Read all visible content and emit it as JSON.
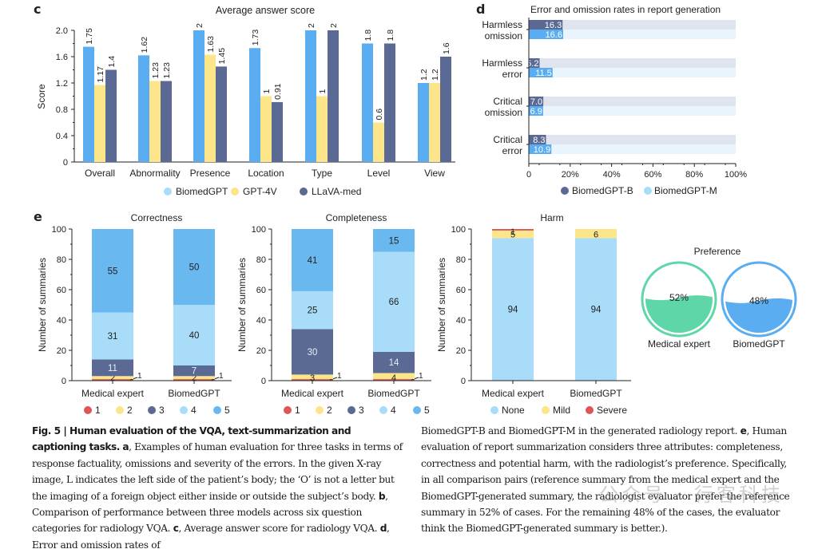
{
  "panel_labels": {
    "c": "c",
    "d": "d",
    "e": "e"
  },
  "colors": {
    "biomedgpt": "#5aadf0",
    "gpt4v": "#fde58a",
    "llava": "#5a6a94",
    "bgpt_b": "#5a6a94",
    "bgpt_m": "#5aadf0",
    "score1": "#e05555",
    "score2": "#fde58a",
    "score3": "#5a6a94",
    "score4": "#a8dcf8",
    "score5": "#6ab8f0",
    "none": "#a8dcf8",
    "mild": "#fde58a",
    "severe": "#e05555",
    "pref_expert": "#5fd6a8",
    "pref_gpt": "#5aadf0"
  },
  "chart_data": [
    {
      "id": "c",
      "type": "bar",
      "title": "Average answer score",
      "xlabel": "",
      "ylabel": "Score",
      "ylim": [
        0,
        2.0
      ],
      "yticks": [
        "0",
        "0.4",
        "0.8",
        "1.2",
        "1.6",
        "2.0"
      ],
      "categories": [
        "Overall",
        "Abnormality",
        "Presence",
        "Location",
        "Type",
        "Level",
        "View"
      ],
      "series": [
        {
          "name": "BiomedGPT",
          "values": [
            1.75,
            1.62,
            2,
            1.73,
            2,
            1.8,
            1.2
          ],
          "labels": [
            "1.75",
            "1.62",
            "2",
            "1.73",
            "2",
            "1.8",
            "1.2"
          ]
        },
        {
          "name": "GPT-4V",
          "values": [
            1.17,
            1.23,
            1.63,
            1,
            1,
            0.6,
            1.2
          ],
          "labels": [
            "1.17",
            "1.23",
            "1.63",
            "1",
            "1",
            "0.6",
            "1.2"
          ]
        },
        {
          "name": "LLaVA-med",
          "values": [
            1.4,
            1.23,
            1.45,
            0.91,
            2,
            1.8,
            1.6
          ],
          "labels": [
            "1.4",
            "1.23",
            "1.45",
            "0.91",
            "2",
            "1.8",
            "1.6"
          ]
        }
      ],
      "legend": "bottom"
    },
    {
      "id": "d",
      "type": "bar",
      "orientation": "horizontal",
      "title": "Error and omission rates in report generation",
      "categories": [
        "Harmless omission",
        "Harmless error",
        "Critical omission",
        "Critical error"
      ],
      "category_lines": [
        [
          "Harmless",
          "omission"
        ],
        [
          "Harmless",
          "error"
        ],
        [
          "Critical",
          "omission"
        ],
        [
          "Critical",
          "error"
        ]
      ],
      "series": [
        {
          "name": "BiomedGPT-B",
          "values": [
            16.3,
            5.2,
            7.0,
            8.3
          ],
          "labels": [
            "16.3",
            "5.2",
            "7.0",
            "8.3"
          ]
        },
        {
          "name": "BiomedGPT-M",
          "values": [
            16.6,
            11.5,
            6.9,
            10.9
          ],
          "labels": [
            "16.6",
            "11.5",
            "6.9",
            "10.9"
          ]
        }
      ],
      "xlim": [
        0,
        100
      ],
      "xticks": [
        "0",
        "20%",
        "40%",
        "60%",
        "80%",
        "100%"
      ],
      "legend": "bottom"
    },
    {
      "id": "e-correctness",
      "type": "bar",
      "stacked": true,
      "title": "Correctness",
      "ylabel": "Number of summaries",
      "ylim": [
        0,
        100
      ],
      "yticks": [
        "0",
        "20",
        "40",
        "60",
        "80",
        "100"
      ],
      "categories": [
        "Medical expert",
        "BiomedGPT"
      ],
      "series": [
        {
          "name": "1",
          "values": [
            1,
            1
          ]
        },
        {
          "name": "2",
          "values": [
            2,
            2
          ]
        },
        {
          "name": "3",
          "values": [
            11,
            7
          ]
        },
        {
          "name": "4",
          "values": [
            31,
            40
          ]
        },
        {
          "name": "5",
          "values": [
            55,
            50
          ]
        }
      ],
      "legend": "bottom"
    },
    {
      "id": "e-completeness",
      "type": "bar",
      "stacked": true,
      "title": "Completeness",
      "ylabel": "Number of summaries",
      "ylim": [
        0,
        100
      ],
      "yticks": [
        "0",
        "20",
        "40",
        "60",
        "80",
        "100"
      ],
      "categories": [
        "Medical expert",
        "BiomedGPT"
      ],
      "series": [
        {
          "name": "1",
          "values": [
            1,
            1
          ]
        },
        {
          "name": "2",
          "values": [
            3,
            4
          ]
        },
        {
          "name": "3",
          "values": [
            30,
            14
          ]
        },
        {
          "name": "4",
          "values": [
            25,
            66
          ]
        },
        {
          "name": "5",
          "values": [
            41,
            15
          ]
        }
      ],
      "legend": "bottom"
    },
    {
      "id": "e-harm",
      "type": "bar",
      "stacked": true,
      "title": "Harm",
      "ylabel": "Number of summaries",
      "ylim": [
        0,
        100
      ],
      "yticks": [
        "0",
        "20",
        "40",
        "60",
        "80",
        "100"
      ],
      "categories": [
        "Medical expert",
        "BiomedGPT"
      ],
      "series": [
        {
          "name": "None",
          "values": [
            94,
            94
          ]
        },
        {
          "name": "Mild",
          "values": [
            5,
            6
          ]
        },
        {
          "name": "Severe",
          "values": [
            1,
            0
          ]
        }
      ],
      "legend": "bottom"
    },
    {
      "id": "e-preference",
      "type": "pie",
      "title": "Preference",
      "categories": [
        "Medical expert",
        "BiomedGPT"
      ],
      "values": [
        52,
        48
      ],
      "labels": [
        "52%",
        "48%"
      ]
    }
  ],
  "caption": {
    "fig": "Fig. 5 | Human evaluation of the VQA, text-summarization and captioning tasks.",
    "a_label": "a",
    "a_text": ", Examples of human evaluation for three tasks in terms of response factuality, omissions and severity of the errors. In the given X-ray image, L indicates the left side of the patient’s body; the ‘O’ is not a letter but the imaging of a foreign object either inside or outside the subject’s body.",
    "b_label": "b",
    "b_text": ", Comparison of performance between three models across six question categories for radiology VQA.",
    "c_label": "c",
    "c_text": ", Average answer score for radiology VQA.",
    "d_label": "d",
    "d_text": ", Error and omission rates of BiomedGPT-B and BiomedGPT-M in the generated radiology report.",
    "e_label": "e",
    "e_text": ", Human evaluation of report summarization considers three attributes: completeness, correctness and potential harm, with the radiologist’s preference. Specifically, in all comparison pairs (reference summary from the medical expert and the BiomedGPT-generated summary, the radiologist evaluator prefer the reference summary in 52% of cases. For the remaining 48% of the cases, the evaluator think the BiomedGPT-generated summary is better.)."
  },
  "watermark": "公众号 · 行客科技"
}
